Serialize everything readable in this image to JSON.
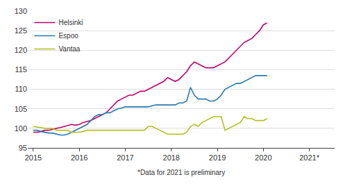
{
  "chart_data": {
    "type": "line",
    "footnote": "*Data for 2021 is preliminary",
    "x": [
      2015.0,
      2015.0833333333333,
      2015.1666666666667,
      2015.25,
      2015.3333333333333,
      2015.4166666666667,
      2015.5,
      2015.5833333333333,
      2015.6666666666667,
      2015.75,
      2015.8333333333333,
      2015.9166666666667,
      2016.0,
      2016.0833333333333,
      2016.1666666666667,
      2016.25,
      2016.3333333333333,
      2016.4166666666667,
      2016.5,
      2016.5833333333333,
      2016.6666666666667,
      2016.75,
      2016.8333333333333,
      2016.9166666666667,
      2017.0,
      2017.0833333333333,
      2017.1666666666667,
      2017.25,
      2017.3333333333333,
      2017.4166666666667,
      2017.5,
      2017.5833333333333,
      2017.6666666666667,
      2017.75,
      2017.8333333333333,
      2017.9166666666667,
      2018.0,
      2018.0833333333333,
      2018.1666666666667,
      2018.25,
      2018.3333333333333,
      2018.4166666666667,
      2018.5,
      2018.5833333333333,
      2018.6666666666667,
      2018.75,
      2018.8333333333333,
      2018.9166666666667,
      2019.0,
      2019.0833333333333,
      2019.1666666666667,
      2019.25,
      2019.3333333333333,
      2019.4166666666667,
      2019.5,
      2019.5833333333333,
      2019.6666666666667,
      2019.75,
      2019.8333333333333,
      2019.9166666666667,
      2020.0,
      2020.0833333333333
    ],
    "series": [
      {
        "name": "Helsinki",
        "color": "#c0006e",
        "values": [
          99.0,
          99.0,
          99.2,
          99.5,
          99.5,
          99.8,
          100.0,
          100.2,
          100.5,
          100.8,
          101.0,
          100.8,
          101.0,
          101.5,
          101.8,
          102.0,
          102.5,
          103.0,
          103.5,
          104.0,
          105.0,
          106.0,
          107.0,
          107.5,
          108.0,
          108.5,
          108.5,
          109.0,
          109.5,
          109.5,
          110.0,
          110.5,
          111.0,
          111.5,
          112.0,
          113.0,
          112.5,
          112.0,
          112.5,
          113.5,
          114.5,
          116.0,
          117.0,
          116.5,
          116.0,
          115.5,
          115.5,
          115.5,
          116.0,
          116.5,
          117.0,
          118.0,
          119.0,
          120.0,
          121.0,
          122.0,
          122.5,
          123.0,
          124.0,
          125.0,
          126.5,
          127.0
        ]
      },
      {
        "name": "Espoo",
        "color": "#2878b0",
        "values": [
          99.5,
          99.5,
          99.2,
          99.0,
          98.8,
          98.8,
          98.5,
          98.3,
          98.3,
          98.5,
          99.0,
          99.5,
          100.0,
          100.5,
          101.0,
          102.0,
          103.0,
          103.5,
          103.5,
          104.0,
          104.0,
          104.5,
          105.0,
          105.2,
          105.5,
          105.5,
          105.5,
          105.5,
          105.5,
          105.5,
          105.5,
          105.8,
          106.0,
          106.0,
          106.0,
          106.0,
          106.0,
          106.0,
          106.5,
          106.5,
          107.0,
          110.5,
          108.5,
          107.5,
          107.5,
          107.5,
          107.0,
          107.0,
          107.5,
          108.5,
          110.0,
          110.5,
          111.0,
          111.5,
          111.5,
          112.0,
          112.5,
          113.0,
          113.5,
          113.5,
          113.5,
          113.5
        ]
      },
      {
        "name": "Vantaa",
        "color": "#b0c020",
        "values": [
          100.5,
          100.3,
          100.2,
          100.0,
          100.0,
          100.0,
          99.5,
          99.5,
          99.5,
          99.5,
          99.0,
          99.0,
          99.0,
          99.2,
          99.5,
          99.5,
          99.5,
          99.5,
          99.5,
          99.5,
          99.5,
          99.5,
          99.5,
          99.5,
          99.5,
          99.5,
          99.5,
          99.5,
          99.5,
          99.5,
          100.5,
          100.5,
          100.0,
          99.5,
          99.0,
          98.5,
          98.5,
          98.5,
          98.5,
          98.5,
          99.0,
          100.5,
          101.0,
          100.5,
          101.5,
          102.0,
          102.5,
          103.0,
          103.0,
          103.0,
          99.5,
          100.0,
          100.5,
          101.0,
          101.5,
          103.0,
          102.5,
          102.5,
          102.0,
          102.0,
          102.0,
          102.5
        ]
      }
    ],
    "xlim": [
      2014.88,
      2021.55
    ],
    "xticks": [
      2015,
      2016,
      2017,
      2018,
      2019,
      2020,
      {
        "value": 2021,
        "label": "2021*"
      }
    ],
    "ylim": [
      95,
      130
    ],
    "yticks": [
      95,
      100,
      105,
      110,
      115,
      120,
      125,
      130
    ],
    "grid": "y",
    "legend": "upper left"
  }
}
